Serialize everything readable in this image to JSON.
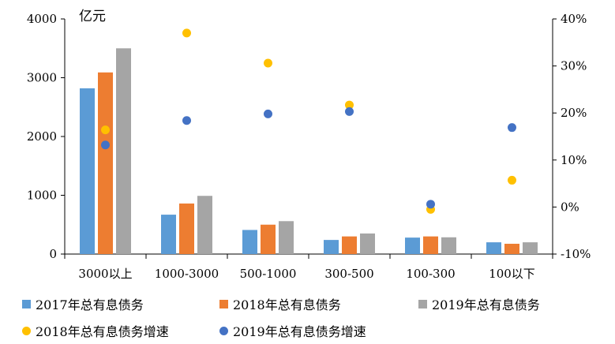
{
  "chart_data": {
    "type": "bar",
    "unit_label": "亿元",
    "categories": [
      "3000以上",
      "1000-3000",
      "500-1000",
      "300-500",
      "100-300",
      "100以下"
    ],
    "y_left": {
      "min": 0,
      "max": 4000,
      "ticks": [
        "0",
        "1000",
        "2000",
        "3000",
        "4000"
      ]
    },
    "y_right": {
      "min": -10,
      "max": 40,
      "ticks": [
        "-10%",
        "0%",
        "10%",
        "20%",
        "30%",
        "40%"
      ]
    },
    "bar_series": [
      {
        "name": "2017年总有息债务",
        "color": "#5B9BD5",
        "values": [
          2820,
          670,
          410,
          240,
          280,
          200
        ]
      },
      {
        "name": "2018年总有息债务",
        "color": "#ED7D31",
        "values": [
          3090,
          860,
          500,
          300,
          300,
          175
        ]
      },
      {
        "name": "2019年总有息债务",
        "color": "#A5A5A5",
        "values": [
          3500,
          990,
          560,
          350,
          285,
          200
        ]
      }
    ],
    "dot_series": [
      {
        "name": "2018年总有息债务增速",
        "color": "#FFC000",
        "values": [
          16.4,
          37.0,
          30.6,
          21.7,
          -0.5,
          5.7
        ]
      },
      {
        "name": "2019年总有息债务增速",
        "color": "#4472C4",
        "values": [
          13.2,
          18.4,
          19.8,
          20.3,
          0.6,
          16.9
        ]
      }
    ]
  }
}
